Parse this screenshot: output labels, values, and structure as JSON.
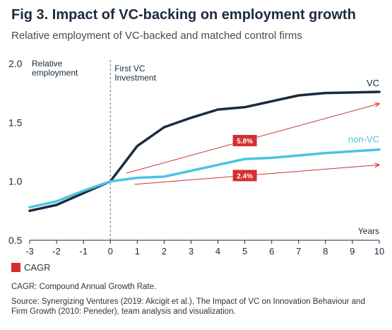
{
  "chart_data": {
    "type": "line",
    "title": "Fig 3. Impact of VC-backing on employment growth",
    "subtitle": "Relative employment of VC-backed and matched control firms",
    "ylabel": "Relative\nemployment",
    "xlabel": "Years",
    "x": [
      -3,
      -2,
      -1,
      0,
      1,
      2,
      3,
      4,
      5,
      6,
      7,
      8,
      9,
      10
    ],
    "xlim": [
      -3,
      10
    ],
    "ylim": [
      0.5,
      2.0
    ],
    "xticks": [
      "-3",
      "-2",
      "-1",
      "0",
      "1",
      "2",
      "3",
      "4",
      "5",
      "6",
      "7",
      "8",
      "9",
      "10"
    ],
    "yticks": [
      "0.5",
      "1.0",
      "1.5",
      "2.0"
    ],
    "grid": false,
    "series": [
      {
        "name": "VC",
        "color": "#1b2a3d",
        "values": [
          0.75,
          0.8,
          0.9,
          1.0,
          1.3,
          1.46,
          1.54,
          1.61,
          1.63,
          1.68,
          1.73,
          1.75,
          1.755,
          1.76
        ]
      },
      {
        "name": "non-VC",
        "color": "#4bc3e3",
        "values": [
          0.78,
          0.83,
          0.92,
          1.0,
          1.03,
          1.04,
          1.09,
          1.14,
          1.19,
          1.2,
          1.22,
          1.24,
          1.255,
          1.27
        ]
      }
    ],
    "event": {
      "x": 0,
      "label": "First VC\nInvestment"
    },
    "trend_arrows": [
      {
        "label": "5.8%",
        "from": [
          0.6,
          1.07
        ],
        "to": [
          10,
          1.66
        ],
        "color": "#d32f2f"
      },
      {
        "label": "2.4%",
        "from": [
          0.9,
          0.975
        ],
        "to": [
          10,
          1.14
        ],
        "color": "#d32f2f"
      }
    ]
  },
  "legend": {
    "label": "CAGR",
    "color": "#d32f2f"
  },
  "footnote": "CAGR: Compound Annual Growth Rate.",
  "source": "Source: Synergizing Ventures (2019: Akcigit et al.), The Impact of VC on Innovation Behaviour and Firm Growth (2010: Peneder), team analysis and visualization."
}
